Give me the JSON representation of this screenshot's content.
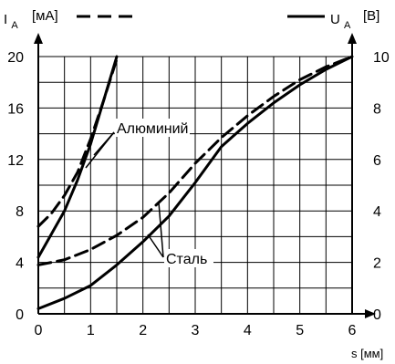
{
  "chart_data": {
    "type": "line",
    "left_axis": {
      "symbol": "I",
      "subscript": "A",
      "unit": "[мА]",
      "ylim": [
        0,
        20
      ],
      "ticks": [
        "0",
        "4",
        "8",
        "12",
        "16",
        "20"
      ]
    },
    "right_axis": {
      "symbol": "U",
      "subscript": "A",
      "unit": "[В]",
      "ylim": [
        0,
        10
      ],
      "ticks": [
        "0",
        "2",
        "4",
        "6",
        "8",
        "10"
      ]
    },
    "x_axis": {
      "label": "s [мм]",
      "xlim": [
        0,
        6
      ],
      "ticks": [
        "0",
        "1",
        "2",
        "3",
        "4",
        "5",
        "6"
      ]
    },
    "grid": true,
    "legend_style": {
      "current": "dashed",
      "voltage": "solid"
    },
    "annotations": {
      "aluminum": "Алюминий",
      "steel": "Сталь"
    },
    "series": [
      {
        "name": "Алюминий",
        "axis": "left",
        "line_style": "dashed",
        "values_x": [
          0,
          0.25,
          0.5,
          0.75,
          1.0,
          1.25,
          1.5
        ],
        "values_y": [
          6.8,
          7.8,
          9.2,
          11.0,
          13.6,
          16.6,
          19.8
        ]
      },
      {
        "name": "Алюминий",
        "axis": "right",
        "line_style": "solid",
        "values_x": [
          0,
          0.25,
          0.5,
          0.75,
          1.0,
          1.25,
          1.5
        ],
        "values_y": [
          2.2,
          3.1,
          4.0,
          5.2,
          6.6,
          8.3,
          10.0
        ]
      },
      {
        "name": "Сталь",
        "axis": "left",
        "line_style": "dashed",
        "values_x": [
          0,
          0.5,
          1.0,
          1.5,
          2.0,
          2.5,
          3.0,
          3.5,
          4.0,
          4.5,
          5.0,
          5.5,
          6.0
        ],
        "values_y": [
          3.8,
          4.2,
          5.0,
          6.1,
          7.5,
          9.4,
          11.7,
          13.7,
          15.4,
          16.9,
          18.2,
          19.2,
          20.0
        ]
      },
      {
        "name": "Сталь",
        "axis": "right",
        "line_style": "solid",
        "values_x": [
          0,
          0.5,
          1.0,
          1.5,
          2.0,
          2.5,
          3.0,
          3.5,
          4.0,
          4.5,
          5.0,
          5.5,
          6.0
        ],
        "values_y": [
          0.2,
          0.6,
          1.1,
          1.9,
          2.8,
          3.8,
          5.1,
          6.5,
          7.4,
          8.2,
          8.9,
          9.5,
          10.0
        ]
      }
    ]
  }
}
